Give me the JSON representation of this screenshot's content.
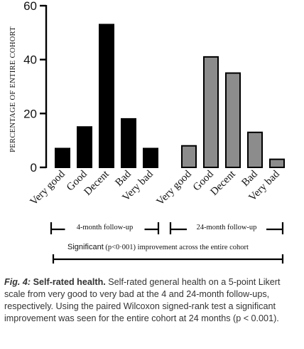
{
  "chart_data": {
    "type": "bar",
    "ylabel": "PERCENTAGE OF ENTIRE COHORT",
    "ylim": [
      0,
      60
    ],
    "yticks": [
      0,
      20,
      40,
      60
    ],
    "categories": [
      "Very good",
      "Good",
      "Decent",
      "Bad",
      "Very bad"
    ],
    "series": [
      {
        "name": "4-month follow-up",
        "values": [
          7,
          15,
          53,
          18,
          7
        ],
        "color": "#000000"
      },
      {
        "name": "24-month follow-up",
        "values": [
          8,
          41,
          35,
          13,
          3
        ],
        "color": "#8c8c8c"
      }
    ],
    "annotation": {
      "bold": "Significant",
      "rest": " (p<0·001) improvement across the entire cohort"
    }
  },
  "caption": {
    "label": "Fig. 4:",
    "title": "Self-rated health.",
    "text": " Self-rated general health on a 5-point Likert scale from very good to very bad at the 4 and 24-month follow-ups, respectively. Using the paired Wilcoxon signed-rank test a significant improvement was seen for the entire cohort at 24 months (p < 0.001)."
  }
}
